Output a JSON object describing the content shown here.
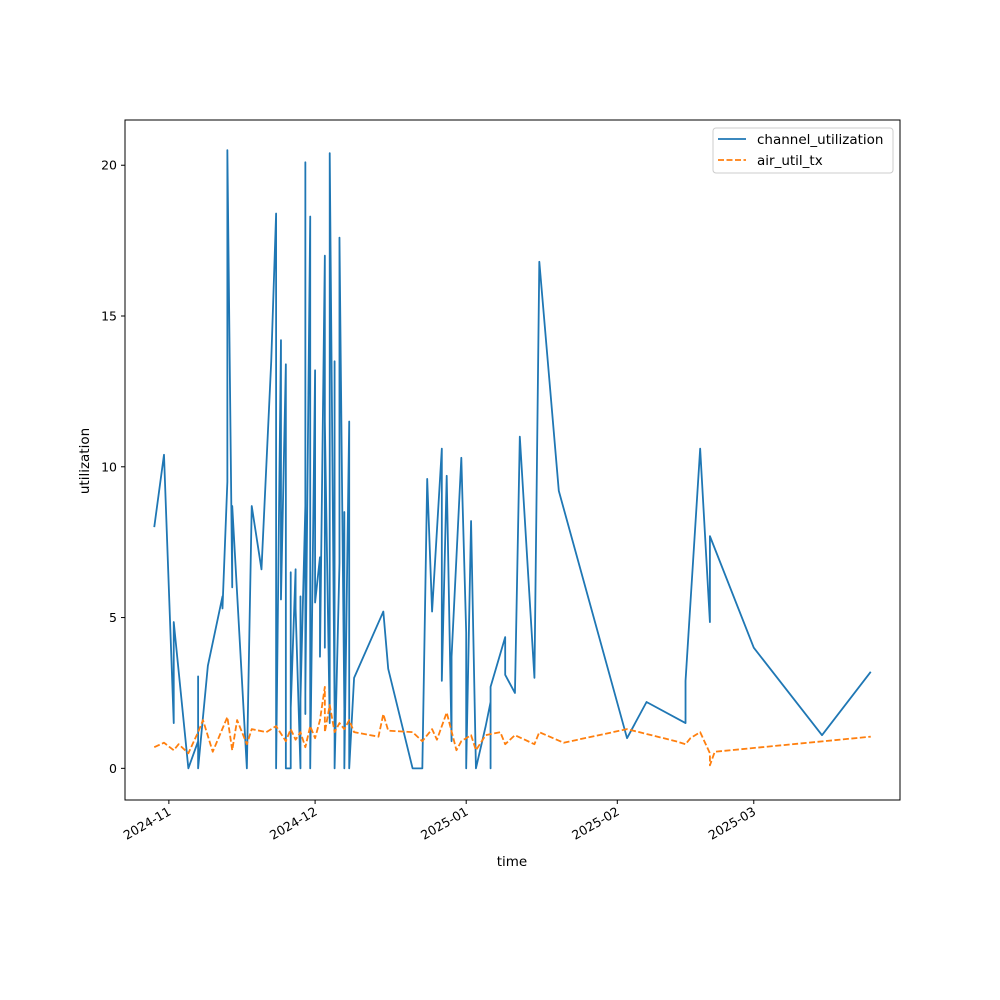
{
  "chart_data": {
    "type": "line",
    "title": "",
    "xlabel": "time",
    "ylabel": "utilization",
    "x_axis_type": "date",
    "xlim": [
      "2024-10-23",
      "2025-03-31"
    ],
    "ylim": [
      -1.05,
      21.5
    ],
    "grid": false,
    "legend_position": "top-right",
    "x_ticks": [
      {
        "date": "2024-11-01",
        "label": "2024-11"
      },
      {
        "date": "2024-12-01",
        "label": "2024-12"
      },
      {
        "date": "2025-01-01",
        "label": "2025-01"
      },
      {
        "date": "2025-02-01",
        "label": "2025-02"
      },
      {
        "date": "2025-03-01",
        "label": "2025-03"
      }
    ],
    "y_ticks": [
      {
        "value": 0,
        "label": "0"
      },
      {
        "value": 5,
        "label": "5"
      },
      {
        "value": 10,
        "label": "10"
      },
      {
        "value": 15,
        "label": "15"
      },
      {
        "value": 20,
        "label": "20"
      }
    ],
    "series": [
      {
        "name": "channel_utilization",
        "color": "#1f77b4",
        "style": "solid",
        "points": [
          [
            "2024-10-29",
            8.0
          ],
          [
            "2024-10-31",
            10.4
          ],
          [
            "2024-11-02",
            1.5
          ],
          [
            "2024-11-02",
            4.85
          ],
          [
            "2024-11-05",
            0.0
          ],
          [
            "2024-11-07",
            0.9
          ],
          [
            "2024-11-07",
            3.05
          ],
          [
            "2024-11-07",
            0.0
          ],
          [
            "2024-11-09",
            3.4
          ],
          [
            "2024-11-12",
            5.7
          ],
          [
            "2024-11-12",
            5.3
          ],
          [
            "2024-11-13",
            9.5
          ],
          [
            "2024-11-13",
            20.5
          ],
          [
            "2024-11-14",
            6.0
          ],
          [
            "2024-11-14",
            8.7
          ],
          [
            "2024-11-17",
            0.0
          ],
          [
            "2024-11-18",
            8.7
          ],
          [
            "2024-11-20",
            6.6
          ],
          [
            "2024-11-22",
            13.5
          ],
          [
            "2024-11-23",
            18.4
          ],
          [
            "2024-11-23",
            0.0
          ],
          [
            "2024-11-24",
            14.2
          ],
          [
            "2024-11-24",
            5.6
          ],
          [
            "2024-11-25",
            13.4
          ],
          [
            "2024-11-25",
            0.0
          ],
          [
            "2024-11-26",
            0.0
          ],
          [
            "2024-11-26",
            6.5
          ],
          [
            "2024-11-26",
            2.0
          ],
          [
            "2024-11-27",
            6.6
          ],
          [
            "2024-11-27",
            5.3
          ],
          [
            "2024-11-28",
            0.0
          ],
          [
            "2024-11-28",
            5.7
          ],
          [
            "2024-11-28",
            2.3
          ],
          [
            "2024-11-29",
            8.7
          ],
          [
            "2024-11-29",
            1.8
          ],
          [
            "2024-11-29",
            20.1
          ],
          [
            "2024-11-29",
            2.5
          ],
          [
            "2024-11-30",
            18.3
          ],
          [
            "2024-11-30",
            3.0
          ],
          [
            "2024-11-30",
            17.7
          ],
          [
            "2024-11-30",
            0.0
          ],
          [
            "2024-12-01",
            13.2
          ],
          [
            "2024-12-01",
            5.5
          ],
          [
            "2024-12-02",
            7.0
          ],
          [
            "2024-12-02",
            3.7
          ],
          [
            "2024-12-03",
            17.0
          ],
          [
            "2024-12-03",
            4.0
          ],
          [
            "2024-12-03",
            11.5
          ],
          [
            "2024-12-04",
            1.5
          ],
          [
            "2024-12-04",
            20.4
          ],
          [
            "2024-12-05",
            2.0
          ],
          [
            "2024-12-05",
            13.5
          ],
          [
            "2024-12-05",
            0.0
          ],
          [
            "2024-12-06",
            6.8
          ],
          [
            "2024-12-06",
            17.6
          ],
          [
            "2024-12-07",
            2.0
          ],
          [
            "2024-12-07",
            8.5
          ],
          [
            "2024-12-07",
            0.0
          ],
          [
            "2024-12-08",
            11.5
          ],
          [
            "2024-12-08",
            0.0
          ],
          [
            "2024-12-09",
            3.0
          ],
          [
            "2024-12-15",
            5.2
          ],
          [
            "2024-12-16",
            3.3
          ],
          [
            "2024-12-21",
            0.0
          ],
          [
            "2024-12-23",
            0.0
          ],
          [
            "2024-12-24",
            9.6
          ],
          [
            "2024-12-25",
            5.2
          ],
          [
            "2024-12-27",
            10.6
          ],
          [
            "2024-12-27",
            2.9
          ],
          [
            "2024-12-28",
            9.7
          ],
          [
            "2024-12-29",
            0.9
          ],
          [
            "2024-12-29",
            3.7
          ],
          [
            "2024-12-31",
            10.3
          ],
          [
            "2025-01-01",
            4.5
          ],
          [
            "2025-01-01",
            0.0
          ],
          [
            "2025-01-02",
            8.2
          ],
          [
            "2025-01-03",
            0.0
          ],
          [
            "2025-01-05",
            1.4
          ],
          [
            "2025-01-06",
            2.2
          ],
          [
            "2025-01-06",
            0.0
          ],
          [
            "2025-01-06",
            2.7
          ],
          [
            "2025-01-09",
            4.35
          ],
          [
            "2025-01-09",
            3.1
          ],
          [
            "2025-01-11",
            2.5
          ],
          [
            "2025-01-12",
            11.0
          ],
          [
            "2025-01-15",
            3.0
          ],
          [
            "2025-01-16",
            16.8
          ],
          [
            "2025-01-20",
            9.2
          ],
          [
            "2025-02-03",
            1.0
          ],
          [
            "2025-02-07",
            2.2
          ],
          [
            "2025-02-15",
            1.5
          ],
          [
            "2025-02-15",
            2.9
          ],
          [
            "2025-02-18",
            10.6
          ],
          [
            "2025-02-20",
            4.85
          ],
          [
            "2025-02-20",
            7.7
          ],
          [
            "2025-03-01",
            4.0
          ],
          [
            "2025-03-15",
            1.1
          ],
          [
            "2025-03-25",
            3.2
          ]
        ]
      },
      {
        "name": "air_util_tx",
        "color": "#ff7f0e",
        "style": "dashed",
        "points": [
          [
            "2024-10-29",
            0.7
          ],
          [
            "2024-10-31",
            0.85
          ],
          [
            "2024-11-02",
            0.6
          ],
          [
            "2024-11-03",
            0.8
          ],
          [
            "2024-11-05",
            0.5
          ],
          [
            "2024-11-07",
            1.2
          ],
          [
            "2024-11-08",
            1.6
          ],
          [
            "2024-11-10",
            0.55
          ],
          [
            "2024-11-13",
            1.7
          ],
          [
            "2024-11-14",
            0.6
          ],
          [
            "2024-11-15",
            1.6
          ],
          [
            "2024-11-17",
            0.8
          ],
          [
            "2024-11-18",
            1.3
          ],
          [
            "2024-11-21",
            1.2
          ],
          [
            "2024-11-23",
            1.4
          ],
          [
            "2024-11-25",
            0.9
          ],
          [
            "2024-11-26",
            1.3
          ],
          [
            "2024-11-27",
            0.95
          ],
          [
            "2024-11-28",
            1.2
          ],
          [
            "2024-11-29",
            0.7
          ],
          [
            "2024-11-30",
            1.4
          ],
          [
            "2024-12-01",
            1.0
          ],
          [
            "2024-12-02",
            1.6
          ],
          [
            "2024-12-03",
            2.7
          ],
          [
            "2024-12-03",
            1.2
          ],
          [
            "2024-12-04",
            2.1
          ],
          [
            "2024-12-05",
            1.2
          ],
          [
            "2024-12-06",
            1.5
          ],
          [
            "2024-12-07",
            1.3
          ],
          [
            "2024-12-08",
            1.6
          ],
          [
            "2024-12-09",
            1.2
          ],
          [
            "2024-12-14",
            1.05
          ],
          [
            "2024-12-15",
            1.8
          ],
          [
            "2024-12-16",
            1.25
          ],
          [
            "2024-12-21",
            1.2
          ],
          [
            "2024-12-23",
            0.9
          ],
          [
            "2024-12-25",
            1.3
          ],
          [
            "2024-12-26",
            0.95
          ],
          [
            "2024-12-28",
            1.85
          ],
          [
            "2024-12-30",
            0.6
          ],
          [
            "2024-12-31",
            0.9
          ],
          [
            "2025-01-02",
            1.1
          ],
          [
            "2025-01-03",
            0.6
          ],
          [
            "2025-01-05",
            1.1
          ],
          [
            "2025-01-08",
            1.2
          ],
          [
            "2025-01-09",
            0.8
          ],
          [
            "2025-01-11",
            1.1
          ],
          [
            "2025-01-15",
            0.8
          ],
          [
            "2025-01-16",
            1.2
          ],
          [
            "2025-01-21",
            0.85
          ],
          [
            "2025-02-03",
            1.3
          ],
          [
            "2025-02-13",
            0.9
          ],
          [
            "2025-02-15",
            0.8
          ],
          [
            "2025-02-16",
            1.0
          ],
          [
            "2025-02-18",
            1.2
          ],
          [
            "2025-02-20",
            0.5
          ],
          [
            "2025-02-20",
            0.1
          ],
          [
            "2025-02-21",
            0.55
          ],
          [
            "2025-03-25",
            1.05
          ]
        ]
      }
    ]
  }
}
